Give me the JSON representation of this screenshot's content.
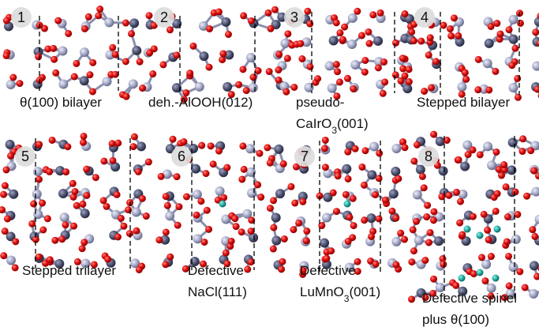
{
  "panels": [
    {
      "number": "1",
      "label": [
        [
          {
            "t": "θ(100) bilayer"
          }
        ]
      ]
    },
    {
      "number": "2",
      "label": [
        [
          {
            "t": "deh.-AlOOH(012)"
          }
        ]
      ]
    },
    {
      "number": "3",
      "label": [
        [
          {
            "t": "pseudo-"
          }
        ],
        [
          {
            "t": "CaIrO"
          },
          {
            "s": "3"
          },
          {
            "t": "(001)"
          }
        ]
      ]
    },
    {
      "number": "4",
      "label": [
        [
          {
            "t": "Stepped bilayer"
          }
        ]
      ]
    },
    {
      "number": "5",
      "label": [
        [
          {
            "t": "Stepped trilayer"
          }
        ]
      ]
    },
    {
      "number": "6",
      "label": [
        [
          {
            "t": "Defective"
          }
        ],
        [
          {
            "t": "NaCl(111)"
          }
        ]
      ]
    },
    {
      "number": "7",
      "label": [
        [
          {
            "t": "Defective"
          }
        ],
        [
          {
            "t": "LuMnO"
          },
          {
            "s": "3"
          },
          {
            "t": "(001)"
          }
        ]
      ]
    },
    {
      "number": "8",
      "label": [
        [
          {
            "t": "Defective spinel"
          }
        ],
        [
          {
            "t": "plus θ(100)"
          }
        ]
      ]
    }
  ]
}
